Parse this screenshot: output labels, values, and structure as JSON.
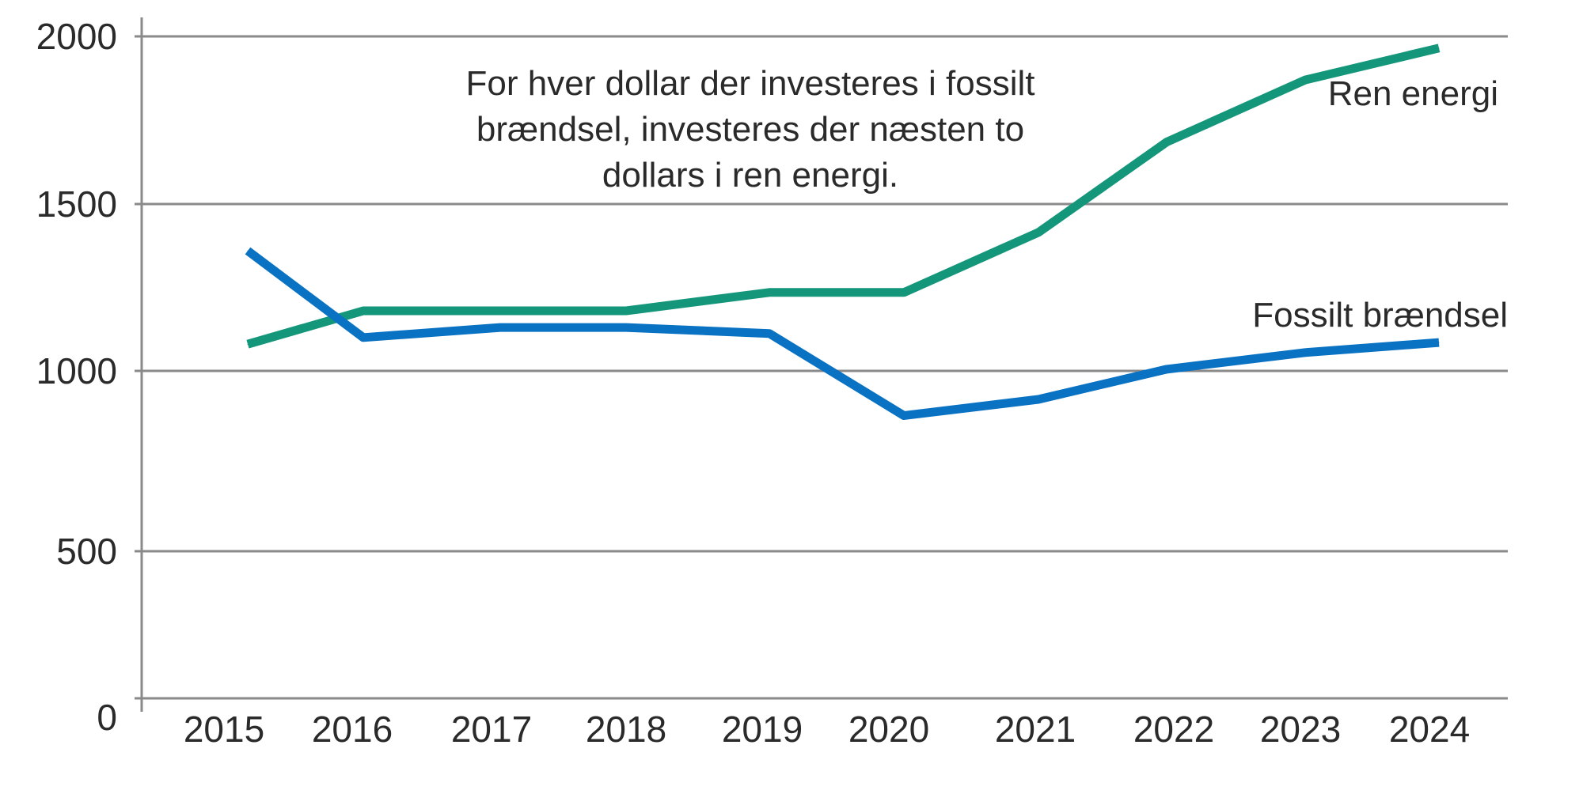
{
  "chart_data": {
    "type": "line",
    "title": "",
    "xlabel": "",
    "ylabel": "",
    "categories": [
      "2015",
      "2016",
      "2017",
      "2018",
      "2019",
      "2020",
      "2021",
      "2022",
      "2023",
      "2024"
    ],
    "ylim": [
      0,
      2000
    ],
    "yticks": [
      "0",
      "500",
      "1000",
      "1500",
      "2000"
    ],
    "grid": true,
    "series": [
      {
        "name": "Ren energi",
        "color": "#13967a",
        "values": [
          1080,
          1180,
          1180,
          1180,
          1235,
          1235,
          1415,
          1685,
          1870,
          1965
        ]
      },
      {
        "name": "Fossilt brændsel",
        "color": "#0a72c2",
        "values": [
          1360,
          1100,
          1130,
          1130,
          1112,
          876,
          921,
          1005,
          1055,
          1085
        ]
      }
    ],
    "annotation": [
      "For hver dollar der investeres i fossilt",
      "brændsel, investeres der næsten to",
      "dollars i ren energi."
    ]
  }
}
